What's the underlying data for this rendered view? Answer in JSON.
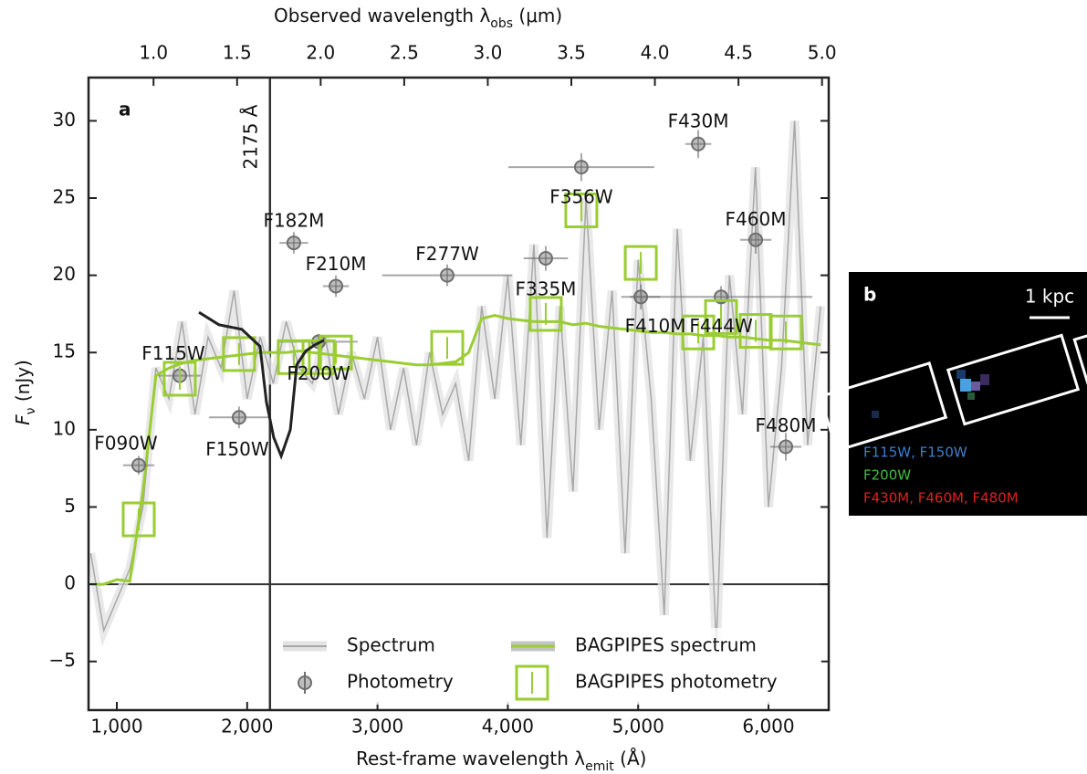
{
  "chart_data": {
    "type": "line",
    "panel_label": "a",
    "xlabel_parts": [
      "Rest-frame wavelength λ",
      "emit",
      " (Å)"
    ],
    "x2label_parts": [
      "Observed wavelength λ",
      "obs",
      " (μm)"
    ],
    "ylabel_parts": [
      "F",
      "ν",
      " (nJy)"
    ],
    "xlim": [
      783,
      6462
    ],
    "xticks": [
      {
        "value": 1000,
        "label": "1,000"
      },
      {
        "value": 2000,
        "label": "2,000"
      },
      {
        "value": 3000,
        "label": "3,000"
      },
      {
        "value": 4000,
        "label": "4,000"
      },
      {
        "value": 5000,
        "label": "5,000"
      },
      {
        "value": 6000,
        "label": "6,000"
      }
    ],
    "x2lim": [
      0.611,
      5.04
    ],
    "x2ticks": [
      {
        "value": 1,
        "label": "1.0"
      },
      1.5,
      {
        "value": 2,
        "label": "2.0"
      },
      2.5,
      {
        "value": 3,
        "label": "3.0"
      },
      3.5,
      {
        "value": 4,
        "label": "4.0"
      },
      4.5,
      {
        "value": 5,
        "label": "5.0"
      }
    ],
    "ylim": [
      -8.15,
      32.8
    ],
    "yticks": [
      {
        "value": -5,
        "label": "−5"
      },
      0,
      5,
      10,
      15,
      20,
      25,
      30
    ],
    "hline": 0,
    "vline": {
      "value": 2175,
      "label": "2175 Å"
    },
    "legend": "lower right",
    "x": [
      800,
      900,
      1000,
      1100,
      1200,
      1300,
      1400,
      1500,
      1600,
      1700,
      1800,
      1900,
      2000,
      2100,
      2200,
      2300,
      2400,
      2500,
      2600,
      2700,
      2800,
      2900,
      3000,
      3100,
      3200,
      3300,
      3400,
      3500,
      3600,
      3700,
      3800,
      3900,
      4000,
      4100,
      4200,
      4300,
      4400,
      4500,
      4600,
      4700,
      4800,
      4900,
      5000,
      5100,
      5200,
      5300,
      5400,
      5500,
      5600,
      5700,
      5800,
      5900,
      6000,
      6100,
      6200,
      6300,
      6400
    ],
    "series": [
      {
        "name": "Spectrum",
        "type": "line",
        "color": "#a8a8a8",
        "values": [
          2,
          -3,
          -1,
          1,
          5,
          14,
          12,
          17,
          11,
          16,
          14,
          19,
          12,
          16,
          13,
          17,
          14,
          13,
          16,
          11,
          15,
          12,
          16,
          10,
          14,
          9,
          15,
          11,
          13,
          8,
          18,
          12,
          20,
          9,
          22,
          3,
          18,
          6,
          25,
          10,
          19,
          2,
          21,
          12,
          -2,
          23,
          8,
          16,
          -4,
          20,
          11,
          27,
          5,
          14,
          30,
          9,
          18
        ]
      },
      {
        "name": "BAGPIPES spectrum",
        "type": "line",
        "color": "#9acd32",
        "values": [
          0,
          0,
          0.3,
          0.2,
          6,
          13.5,
          14,
          14.3,
          14.5,
          14.6,
          14.7,
          14.8,
          14.9,
          15,
          15,
          15,
          15.1,
          15,
          14.9,
          14.8,
          14.7,
          14.6,
          14.5,
          14.4,
          14.3,
          14.2,
          14.2,
          14.3,
          14.4,
          15,
          17.2,
          17.4,
          17.2,
          17.1,
          17,
          17,
          17,
          16.8,
          16.9,
          16.7,
          16.6,
          16.5,
          16.4,
          16.3,
          16.3,
          16.2,
          16.2,
          16.1,
          16.1,
          16,
          16,
          15.9,
          15.8,
          15.8,
          15.7,
          15.6,
          15.5
        ]
      },
      {
        "name": "Photometry",
        "type": "points",
        "color": "#6e6e6e",
        "labels": [
          "F090W",
          "F115W",
          "F150W",
          "F182M",
          "F210M",
          "F200W",
          "F277W",
          "F335M",
          "F356W",
          "F410M",
          "F444W",
          "F430M",
          "F460M",
          "F480M"
        ],
        "x": [
          1168,
          1483,
          1938,
          2358,
          2681,
          2548,
          3535,
          4291,
          4564,
          5020,
          5636,
          5461,
          5902,
          6133
        ],
        "values": [
          7.7,
          13.5,
          10.8,
          22.1,
          19.3,
          15.7,
          20,
          21.1,
          27,
          18.6,
          18.6,
          28.5,
          22.3,
          8.9
        ],
        "xerr": [
          120,
          160,
          230,
          110,
          100,
          300,
          500,
          170,
          560,
          150,
          700,
          100,
          120,
          120
        ],
        "yerr": [
          0.6,
          0.6,
          0.7,
          0.7,
          0.7,
          0.5,
          0.7,
          0.8,
          0.9,
          0.8,
          0.7,
          0.9,
          0.9,
          0.9
        ]
      },
      {
        "name": "BAGPIPES photometry",
        "type": "boxes",
        "color": "#9acd32",
        "values": [
          4.2,
          13.3,
          14.9,
          14.7,
          15,
          14.7,
          15.3,
          17.5,
          24.2,
          20.8,
          17.3,
          16.3,
          16.4,
          16.3
        ]
      },
      {
        "type": "line",
        "color": "#222222",
        "x": [
          1630,
          1784,
          1959,
          2099,
          2148,
          2204,
          2261,
          2331,
          2380,
          2450,
          2520,
          2590
        ],
        "values": [
          17.6,
          16.8,
          16.5,
          15.4,
          11.8,
          9.5,
          8.3,
          10,
          14.2,
          15.1,
          15.5,
          15.8
        ]
      }
    ]
  },
  "image_panel": {
    "panel_label": "b",
    "scale_label": "1 kpc",
    "legend": [
      {
        "text": "F115W, F150W",
        "color": "#3d7fd0"
      },
      {
        "text": "F200W",
        "color": "#3fbf3f"
      },
      {
        "text": "F430M, F460M, F480M",
        "color": "#e02020"
      }
    ]
  }
}
